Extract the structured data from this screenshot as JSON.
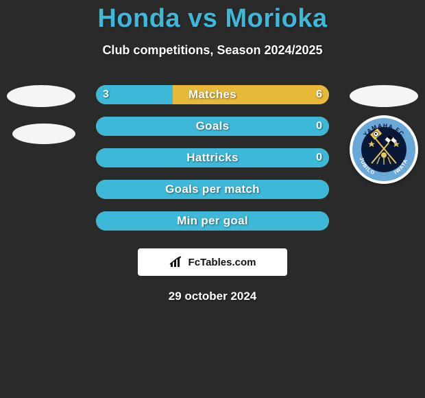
{
  "header": {
    "player1": "Honda",
    "vs": "vs",
    "player2": "Morioka",
    "title_color": "#3db8d8",
    "subtitle": "Club competitions, Season 2024/2025"
  },
  "palette": {
    "player1_color": "#3db8d8",
    "player2_color": "#e8b838",
    "background": "#2a2a2a",
    "text": "#ffffff"
  },
  "stats": [
    {
      "label": "Matches",
      "left_value": "3",
      "right_value": "6",
      "left_pct": 33,
      "right_pct": 67,
      "show_values": true
    },
    {
      "label": "Goals",
      "left_value": "",
      "right_value": "0",
      "left_pct": 100,
      "right_pct": 0,
      "show_values": true
    },
    {
      "label": "Hattricks",
      "left_value": "",
      "right_value": "0",
      "left_pct": 100,
      "right_pct": 0,
      "show_values": true
    },
    {
      "label": "Goals per match",
      "left_value": "",
      "right_value": "",
      "left_pct": 100,
      "right_pct": 0,
      "show_values": false
    },
    {
      "label": "Min per goal",
      "left_value": "",
      "right_value": "",
      "left_pct": 100,
      "right_pct": 0,
      "show_values": false
    }
  ],
  "club_badge": {
    "outer_ring_color": "#6aa8d8",
    "inner_field_color": "#0a1838",
    "text_top": "YAMAHA FC",
    "text_bottom_left": "JUBILO",
    "text_bottom_right": "IWATA",
    "accent_color": "#e8c850"
  },
  "footer": {
    "brand": "FcTables.com",
    "date": "29 october 2024"
  }
}
